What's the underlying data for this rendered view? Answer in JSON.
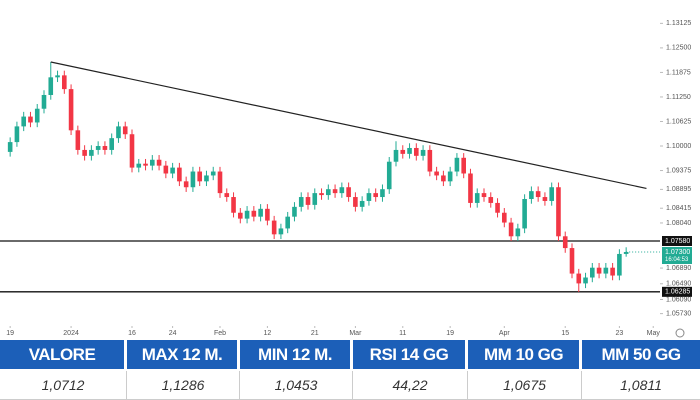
{
  "chart_data": {
    "type": "candlestick",
    "xlim": [
      -1.5,
      96
    ],
    "xticks": [
      {
        "value": 0,
        "label": "19"
      },
      {
        "value": 9,
        "label": "2024"
      },
      {
        "value": 18,
        "label": "16"
      },
      {
        "value": 24,
        "label": "24"
      },
      {
        "value": 31,
        "label": "Feb"
      },
      {
        "value": 38,
        "label": "12"
      },
      {
        "value": 45,
        "label": "21"
      },
      {
        "value": 51,
        "label": "Mar"
      },
      {
        "value": 58,
        "label": "11"
      },
      {
        "value": 65,
        "label": "19"
      },
      {
        "value": 73,
        "label": "Apr"
      },
      {
        "value": 82,
        "label": "15"
      },
      {
        "value": 90,
        "label": "23"
      },
      {
        "value": 95,
        "label": "May"
      }
    ],
    "ylim": [
      1.0544,
      1.1372
    ],
    "yticks": [
      1.13125,
      {
        "value": 1.125,
        "label": "1.12500"
      },
      1.11875,
      {
        "value": 1.1125,
        "label": "1.11250"
      },
      1.10625,
      {
        "value": 1.1,
        "label": "1.10000"
      },
      1.09375,
      1.08895,
      1.08415,
      {
        "value": 1.0804,
        "label": "1.08040"
      },
      {
        "value": 1.0689,
        "label": "1.06890"
      },
      {
        "value": 1.0649,
        "label": "1.06490"
      },
      {
        "value": 1.0609,
        "label": "1.06090"
      },
      {
        "value": 1.0573,
        "label": "1.05730"
      }
    ],
    "grid": false,
    "up_color": "#22ab94",
    "down_color": "#f23645",
    "open": [
      1.0985,
      1.101,
      1.105,
      1.1075,
      1.106,
      1.1095,
      1.113,
      1.1175,
      1.118,
      1.1145,
      1.104,
      1.099,
      1.0975,
      1.099,
      1.1,
      1.099,
      1.102,
      1.105,
      1.103,
      1.0945,
      1.0955,
      1.095,
      1.0965,
      1.095,
      1.093,
      1.0945,
      1.091,
      1.0895,
      1.0935,
      1.091,
      1.0925,
      1.0935,
      1.088,
      1.087,
      1.083,
      1.0815,
      1.0835,
      1.082,
      1.084,
      1.081,
      1.0775,
      1.079,
      1.082,
      1.0845,
      1.087,
      1.085,
      1.088,
      1.0875,
      1.089,
      1.088,
      1.0895,
      1.087,
      1.0845,
      1.086,
      1.088,
      1.087,
      1.089,
      1.096,
      1.099,
      1.098,
      1.0995,
      1.0975,
      1.099,
      1.0935,
      1.0925,
      1.091,
      1.0935,
      1.097,
      1.093,
      1.0855,
      1.088,
      1.087,
      1.0855,
      1.083,
      1.0805,
      1.077,
      1.079,
      1.0865,
      1.0885,
      1.087,
      1.086,
      1.0895,
      1.077,
      1.074,
      1.0675,
      1.065,
      1.0665,
      1.069,
      1.0675,
      1.069,
      1.067,
      1.0725
    ],
    "high": [
      1.1022,
      1.1062,
      1.1087,
      1.1087,
      1.1107,
      1.1142,
      1.1214,
      1.1192,
      1.1192,
      1.1157,
      1.1052,
      1.1002,
      1.1002,
      1.1012,
      1.1012,
      1.1032,
      1.1062,
      1.1062,
      1.1042,
      1.0967,
      1.0967,
      1.0977,
      1.0977,
      1.0962,
      1.0957,
      1.0957,
      1.0922,
      1.0947,
      1.0947,
      1.0937,
      1.0947,
      1.0947,
      1.0892,
      1.0882,
      1.0842,
      1.0847,
      1.0847,
      1.0852,
      1.0852,
      1.0822,
      1.0802,
      1.0832,
      1.0857,
      1.0882,
      1.0882,
      1.0892,
      1.0892,
      1.0902,
      1.0902,
      1.0907,
      1.0907,
      1.0882,
      1.0872,
      1.0892,
      1.0892,
      1.0902,
      1.0972,
      1.1012,
      1.1002,
      1.1007,
      1.1007,
      1.1002,
      1.1002,
      1.0947,
      1.0937,
      1.0947,
      1.0982,
      1.0982,
      1.0942,
      1.0892,
      1.0892,
      1.0882,
      1.0867,
      1.0842,
      1.0817,
      1.0802,
      1.0877,
      1.0897,
      1.0897,
      1.0882,
      1.0907,
      1.0907,
      1.0782,
      1.0752,
      1.0687,
      1.0677,
      1.0702,
      1.0702,
      1.0702,
      1.0702,
      1.0737,
      1.0742
    ],
    "low": [
      1.0973,
      1.0998,
      1.1038,
      1.1048,
      1.1048,
      1.1083,
      1.1118,
      1.1163,
      1.1133,
      1.1028,
      1.0978,
      1.0963,
      1.0963,
      1.0978,
      1.0978,
      1.0978,
      1.1008,
      1.1018,
      1.0933,
      1.0933,
      1.0938,
      1.0938,
      1.0938,
      1.0918,
      1.0918,
      1.0898,
      1.0883,
      1.0883,
      1.0898,
      1.0898,
      1.0913,
      1.0868,
      1.0858,
      1.0818,
      1.0803,
      1.0803,
      1.0808,
      1.0808,
      1.0798,
      1.0763,
      1.0763,
      1.0778,
      1.0808,
      1.0833,
      1.0838,
      1.0838,
      1.0863,
      1.0863,
      1.0868,
      1.0868,
      1.0858,
      1.0833,
      1.0833,
      1.0848,
      1.0858,
      1.0858,
      1.0878,
      1.0948,
      1.0968,
      1.0968,
      1.0963,
      1.0963,
      1.0923,
      1.0913,
      1.0898,
      1.0898,
      1.0923,
      1.0918,
      1.0843,
      1.0843,
      1.0858,
      1.0843,
      1.0818,
      1.0793,
      1.0758,
      1.0758,
      1.0778,
      1.0853,
      1.0858,
      1.0848,
      1.0848,
      1.0758,
      1.0728,
      1.0663,
      1.0628,
      1.0638,
      1.0653,
      1.0663,
      1.0663,
      1.0658,
      1.0658,
      1.0718
    ],
    "close": [
      1.101,
      1.105,
      1.1075,
      1.106,
      1.1095,
      1.113,
      1.1175,
      1.118,
      1.1145,
      1.104,
      1.099,
      1.0975,
      1.099,
      1.1,
      1.099,
      1.102,
      1.105,
      1.103,
      1.0945,
      1.0955,
      1.095,
      1.0965,
      1.095,
      1.093,
      1.0945,
      1.091,
      1.0895,
      1.0935,
      1.091,
      1.0925,
      1.0935,
      1.088,
      1.087,
      1.083,
      1.0815,
      1.0835,
      1.082,
      1.084,
      1.081,
      1.0775,
      1.079,
      1.082,
      1.0845,
      1.087,
      1.085,
      1.088,
      1.0875,
      1.089,
      1.088,
      1.0895,
      1.087,
      1.0845,
      1.086,
      1.088,
      1.087,
      1.089,
      1.096,
      1.099,
      1.098,
      1.0995,
      1.0975,
      1.099,
      1.0935,
      1.0925,
      1.091,
      1.0935,
      1.097,
      1.093,
      1.0855,
      1.088,
      1.087,
      1.0855,
      1.083,
      1.0805,
      1.077,
      1.079,
      1.0865,
      1.0885,
      1.087,
      1.086,
      1.0895,
      1.077,
      1.074,
      1.0675,
      1.065,
      1.0665,
      1.069,
      1.0675,
      1.069,
      1.067,
      1.0725,
      1.073
    ],
    "trendline": {
      "x": [
        6,
        94
      ],
      "values": [
        1.1214,
        1.0892
      ]
    },
    "levels": [
      {
        "value": 1.0758,
        "label": "1.07580"
      },
      {
        "value": 1.06285,
        "label": "1.06285"
      }
    ],
    "last_price": {
      "value": 1.073,
      "label": "1.07300",
      "time": "16:04:53"
    }
  },
  "table": {
    "headers": [
      "VALORE",
      "MAX 12 M.",
      "MIN 12 M.",
      "RSI 14 GG",
      "MM 10 GG",
      "MM 50 GG"
    ],
    "rows": [
      [
        "1,0712",
        "1,1286",
        "1,0453",
        "44,22",
        "1,0675",
        "1,0811"
      ]
    ]
  }
}
